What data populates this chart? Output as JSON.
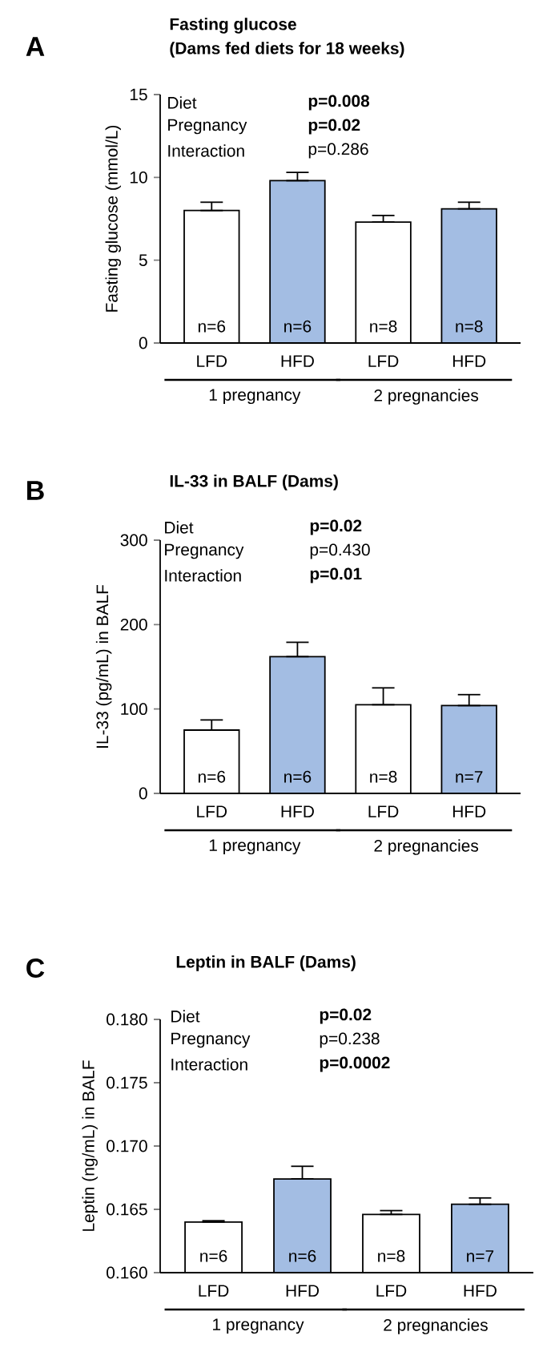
{
  "chart_data": [
    {
      "type": "bar",
      "title": "Fasting glucose",
      "subtitle": "(Dams fed diets for 18 weeks)",
      "ylabel": "Fasting glucose (mmol/L)",
      "categories": [
        "LFD",
        "HFD",
        "LFD",
        "HFD"
      ],
      "values": [
        8.0,
        9.8,
        7.3,
        8.1
      ],
      "errors": [
        [
          8.0,
          8.5
        ],
        [
          9.8,
          10.3
        ],
        [
          7.3,
          7.7
        ],
        [
          8.1,
          8.5
        ]
      ],
      "colors": [
        "#ffffff",
        "#a3bde3",
        "#ffffff",
        "#a3bde3"
      ],
      "ylim": [
        0,
        15
      ],
      "yticks": [
        0,
        5,
        10,
        15
      ],
      "annotations": [
        "A",
        "Diet",
        "**p=0.008**",
        "Pregnancy",
        "**p=0.02**",
        "Interaction",
        "p=0.286",
        "n=6",
        "n=6",
        "n=8",
        "n=8",
        "1 pregnancy",
        "2 pregnancies"
      ]
    },
    {
      "type": "bar",
      "title": "IL-33 in BALF (Dams)",
      "ylabel": "IL-33 (pg/mL) in BALF",
      "categories": [
        "LFD",
        "HFD",
        "LFD",
        "HFD"
      ],
      "values": [
        75,
        162,
        105,
        104
      ],
      "errors": [
        [
          75,
          87
        ],
        [
          162,
          179
        ],
        [
          105,
          125
        ],
        [
          104,
          117
        ]
      ],
      "colors": [
        "#ffffff",
        "#a3bde3",
        "#ffffff",
        "#a3bde3"
      ],
      "ylim": [
        0,
        300
      ],
      "yticks": [
        0,
        100,
        200,
        300
      ],
      "annotations": [
        "B",
        "Diet",
        "**p=0.02**",
        "Pregnancy",
        "p=0.430",
        "Interaction",
        "**p=0.01**",
        "n=6",
        "n=6",
        "n=8",
        "n=7",
        "1 pregnancy",
        "2 pregnancies"
      ]
    },
    {
      "type": "bar",
      "title": "Leptin in BALF (Dams)",
      "ylabel": "Leptin (ng/mL) in BALF",
      "categories": [
        "LFD",
        "HFD",
        "LFD",
        "HFD"
      ],
      "values": [
        0.164,
        0.1674,
        0.1646,
        0.1654
      ],
      "errors": [
        [
          0.164,
          0.1641
        ],
        [
          0.1674,
          0.1684
        ],
        [
          0.1646,
          0.1649
        ],
        [
          0.1654,
          0.1659
        ]
      ],
      "colors": [
        "#ffffff",
        "#a3bde3",
        "#ffffff",
        "#a3bde3"
      ],
      "ylim": [
        0.16,
        0.18
      ],
      "yticks": [
        {
          "value": 0.16,
          "label": "0.160"
        },
        {
          "value": 0.165,
          "label": "0.165"
        },
        {
          "value": 0.17,
          "label": "0.170"
        },
        {
          "value": 0.175,
          "label": "0.175"
        },
        {
          "value": 0.18,
          "label": "0.180"
        }
      ],
      "annotations": [
        "C",
        "Diet",
        "**p=0.02**",
        "Pregnancy",
        "p=0.238",
        "Interaction",
        "**p=0.0002**",
        "n=6",
        "n=6",
        "n=8",
        "n=7",
        "1 pregnancy",
        "2 pregnancies"
      ]
    }
  ]
}
